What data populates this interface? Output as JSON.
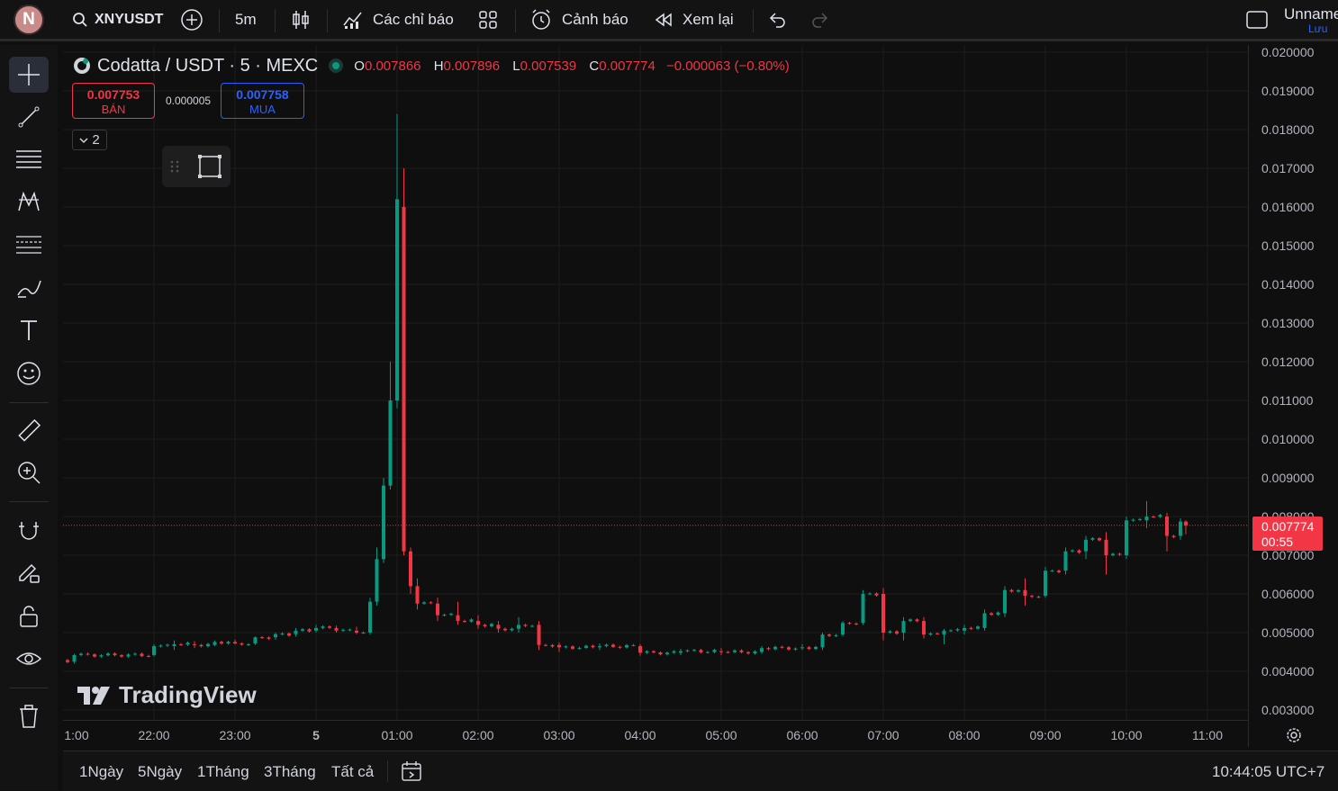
{
  "header": {
    "avatar_letter": "N",
    "symbol": "XNYUSDT",
    "interval": "5m",
    "indicators_label": "Các chỉ báo",
    "alert_label": "Cảnh báo",
    "replay_label": "Xem lại",
    "layout_name": "Unname",
    "save_label": "Lưu"
  },
  "legend": {
    "title": "Codatta / USDT · 5 · MEXC",
    "open_key": "O",
    "open": "0.007866",
    "high_key": "H",
    "high": "0.007896",
    "low_key": "L",
    "low": "0.007539",
    "close_key": "C",
    "close": "0.007774",
    "change": "−0.000063 (−0.80%)",
    "sell_price": "0.007753",
    "sell_label": "BÁN",
    "spread": "0.000005",
    "buy_price": "0.007758",
    "buy_label": "MUA",
    "indicators_count": "2"
  },
  "price_axis": {
    "labels": [
      "0.020000",
      "0.019000",
      "0.018000",
      "0.017000",
      "0.016000",
      "0.015000",
      "0.014000",
      "0.013000",
      "0.012000",
      "0.011000",
      "0.010000",
      "0.009000",
      "0.008000",
      "0.007000",
      "0.006000",
      "0.005000",
      "0.004000",
      "0.003000"
    ],
    "last_price": "0.007774",
    "countdown": "00:55"
  },
  "time_axis": {
    "labels": [
      "1:00",
      "22:00",
      "23:00",
      "5",
      "01:00",
      "02:00",
      "03:00",
      "04:00",
      "05:00",
      "06:00",
      "07:00",
      "08:00",
      "09:00",
      "10:00",
      "11:00"
    ]
  },
  "bottom": {
    "ranges": [
      "1Ngày",
      "5Ngày",
      "1Tháng",
      "3Tháng",
      "Tất cả"
    ],
    "clock": "10:44:05 UTC+7"
  },
  "watermark": "TradingView",
  "colors": {
    "up": "#089981",
    "down": "#f23645",
    "background": "#0f0f0f",
    "accent": "#2962ff"
  },
  "chart_data": {
    "type": "candlestick",
    "ylim": [
      0.003,
      0.02
    ],
    "last_price": 0.007774,
    "series": [
      {
        "t": "21:30",
        "o": 0.00423,
        "h": 0.00428,
        "l": 0.00418,
        "c": 0.00425
      },
      {
        "t": "21:45",
        "o": 0.00425,
        "h": 0.00445,
        "l": 0.0042,
        "c": 0.00442
      },
      {
        "t": "22:00",
        "o": 0.00442,
        "h": 0.0047,
        "l": 0.00438,
        "c": 0.00465
      },
      {
        "t": "22:15",
        "o": 0.00465,
        "h": 0.0048,
        "l": 0.00455,
        "c": 0.0047
      },
      {
        "t": "22:30",
        "o": 0.0047,
        "h": 0.00478,
        "l": 0.0046,
        "c": 0.00468
      },
      {
        "t": "22:45",
        "o": 0.00468,
        "h": 0.0048,
        "l": 0.00465,
        "c": 0.00476
      },
      {
        "t": "23:00",
        "o": 0.00476,
        "h": 0.00482,
        "l": 0.0047,
        "c": 0.00472
      },
      {
        "t": "23:15",
        "o": 0.00472,
        "h": 0.0049,
        "l": 0.00468,
        "c": 0.00488
      },
      {
        "t": "23:30",
        "o": 0.00488,
        "h": 0.005,
        "l": 0.00482,
        "c": 0.00496
      },
      {
        "t": "23:45",
        "o": 0.00496,
        "h": 0.00512,
        "l": 0.0049,
        "c": 0.00505
      },
      {
        "t": "00:00",
        "o": 0.00505,
        "h": 0.0052,
        "l": 0.005,
        "c": 0.00512
      },
      {
        "t": "00:15",
        "o": 0.00512,
        "h": 0.00518,
        "l": 0.005,
        "c": 0.00505
      },
      {
        "t": "00:30",
        "o": 0.00505,
        "h": 0.00515,
        "l": 0.00496,
        "c": 0.005
      },
      {
        "t": "00:40",
        "o": 0.005,
        "h": 0.0059,
        "l": 0.00495,
        "c": 0.0058
      },
      {
        "t": "00:45",
        "o": 0.0058,
        "h": 0.0072,
        "l": 0.0057,
        "c": 0.0069
      },
      {
        "t": "00:50",
        "o": 0.0069,
        "h": 0.009,
        "l": 0.0068,
        "c": 0.0088
      },
      {
        "t": "00:55",
        "o": 0.0088,
        "h": 0.012,
        "l": 0.0087,
        "c": 0.011
      },
      {
        "t": "01:00",
        "o": 0.011,
        "h": 0.0184,
        "l": 0.0108,
        "c": 0.0162
      },
      {
        "t": "01:05",
        "o": 0.016,
        "h": 0.017,
        "l": 0.007,
        "c": 0.0071
      },
      {
        "t": "01:10",
        "o": 0.0071,
        "h": 0.0072,
        "l": 0.006,
        "c": 0.0062
      },
      {
        "t": "01:15",
        "o": 0.0062,
        "h": 0.0064,
        "l": 0.0056,
        "c": 0.00575
      },
      {
        "t": "01:30",
        "o": 0.00575,
        "h": 0.0059,
        "l": 0.0053,
        "c": 0.00545
      },
      {
        "t": "01:45",
        "o": 0.00545,
        "h": 0.0058,
        "l": 0.0052,
        "c": 0.0053
      },
      {
        "t": "02:00",
        "o": 0.0053,
        "h": 0.00545,
        "l": 0.0051,
        "c": 0.0052
      },
      {
        "t": "02:15",
        "o": 0.0052,
        "h": 0.0053,
        "l": 0.005,
        "c": 0.0051
      },
      {
        "t": "02:30",
        "o": 0.0051,
        "h": 0.0054,
        "l": 0.005,
        "c": 0.0052
      },
      {
        "t": "02:45",
        "o": 0.0052,
        "h": 0.0053,
        "l": 0.00455,
        "c": 0.00468
      },
      {
        "t": "03:00",
        "o": 0.00468,
        "h": 0.00475,
        "l": 0.0045,
        "c": 0.00462
      },
      {
        "t": "03:30",
        "o": 0.00462,
        "h": 0.00472,
        "l": 0.00455,
        "c": 0.00465
      },
      {
        "t": "04:00",
        "o": 0.00465,
        "h": 0.0047,
        "l": 0.0044,
        "c": 0.00448
      },
      {
        "t": "04:30",
        "o": 0.00448,
        "h": 0.00458,
        "l": 0.00442,
        "c": 0.00452
      },
      {
        "t": "05:00",
        "o": 0.00452,
        "h": 0.0046,
        "l": 0.00442,
        "c": 0.0045
      },
      {
        "t": "05:30",
        "o": 0.0045,
        "h": 0.00465,
        "l": 0.00445,
        "c": 0.0046
      },
      {
        "t": "06:00",
        "o": 0.0046,
        "h": 0.0047,
        "l": 0.00455,
        "c": 0.00462
      },
      {
        "t": "06:15",
        "o": 0.00462,
        "h": 0.005,
        "l": 0.00455,
        "c": 0.00495
      },
      {
        "t": "06:30",
        "o": 0.00495,
        "h": 0.0053,
        "l": 0.0049,
        "c": 0.00525
      },
      {
        "t": "06:45",
        "o": 0.00525,
        "h": 0.0061,
        "l": 0.0052,
        "c": 0.006
      },
      {
        "t": "07:00",
        "o": 0.006,
        "h": 0.00615,
        "l": 0.0048,
        "c": 0.005
      },
      {
        "t": "07:15",
        "o": 0.005,
        "h": 0.0054,
        "l": 0.0048,
        "c": 0.0053
      },
      {
        "t": "07:30",
        "o": 0.0053,
        "h": 0.0054,
        "l": 0.00485,
        "c": 0.00495
      },
      {
        "t": "07:45",
        "o": 0.00495,
        "h": 0.0051,
        "l": 0.0047,
        "c": 0.00505
      },
      {
        "t": "08:00",
        "o": 0.00505,
        "h": 0.0052,
        "l": 0.00495,
        "c": 0.00512
      },
      {
        "t": "08:15",
        "o": 0.00512,
        "h": 0.0056,
        "l": 0.00505,
        "c": 0.0055
      },
      {
        "t": "08:30",
        "o": 0.0055,
        "h": 0.0062,
        "l": 0.0054,
        "c": 0.0061
      },
      {
        "t": "08:45",
        "o": 0.0061,
        "h": 0.0064,
        "l": 0.0057,
        "c": 0.00595
      },
      {
        "t": "09:00",
        "o": 0.00595,
        "h": 0.0067,
        "l": 0.0059,
        "c": 0.0066
      },
      {
        "t": "09:15",
        "o": 0.0066,
        "h": 0.0072,
        "l": 0.0065,
        "c": 0.0071
      },
      {
        "t": "09:30",
        "o": 0.0071,
        "h": 0.0075,
        "l": 0.0069,
        "c": 0.0074
      },
      {
        "t": "09:45",
        "o": 0.0074,
        "h": 0.0076,
        "l": 0.0065,
        "c": 0.007
      },
      {
        "t": "10:00",
        "o": 0.007,
        "h": 0.008,
        "l": 0.0069,
        "c": 0.0079
      },
      {
        "t": "10:15",
        "o": 0.0079,
        "h": 0.0084,
        "l": 0.0077,
        "c": 0.008
      },
      {
        "t": "10:30",
        "o": 0.008,
        "h": 0.0081,
        "l": 0.0071,
        "c": 0.0075
      },
      {
        "t": "10:40",
        "o": 0.0075,
        "h": 0.00795,
        "l": 0.0074,
        "c": 0.00787
      },
      {
        "t": "10:44",
        "o": 0.00787,
        "h": 0.0079,
        "l": 0.00754,
        "c": 0.00777
      }
    ]
  }
}
